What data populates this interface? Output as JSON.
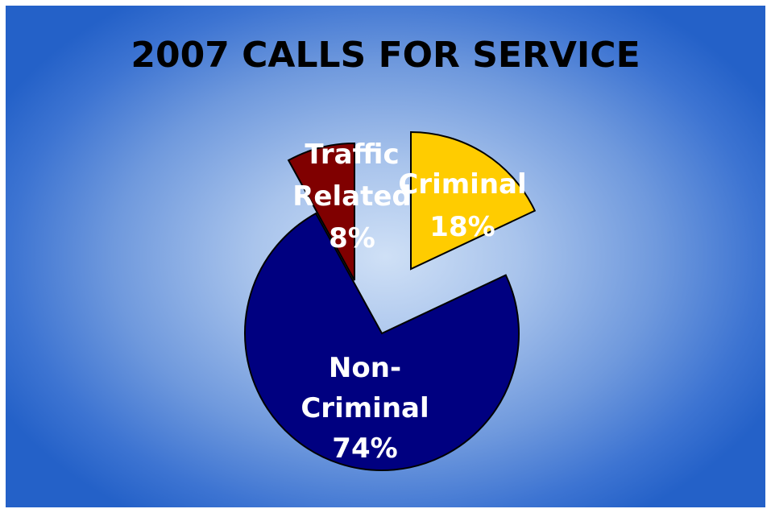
{
  "chart_data": {
    "type": "pie",
    "title": "2007 CALLS FOR SERVICE",
    "slices": [
      {
        "label_lines": [
          "Criminal",
          "18%"
        ],
        "category": "Criminal",
        "value": 18,
        "color": "#FFCC00"
      },
      {
        "label_lines": [
          "Non-",
          "Criminal",
          "74%"
        ],
        "category": "Non-Criminal",
        "value": 74,
        "color": "#000080"
      },
      {
        "label_lines": [
          "Traffic",
          "Related",
          "8%"
        ],
        "category": "Traffic Related",
        "value": 8,
        "color": "#800000"
      }
    ],
    "exploded": true,
    "legend": "none"
  }
}
